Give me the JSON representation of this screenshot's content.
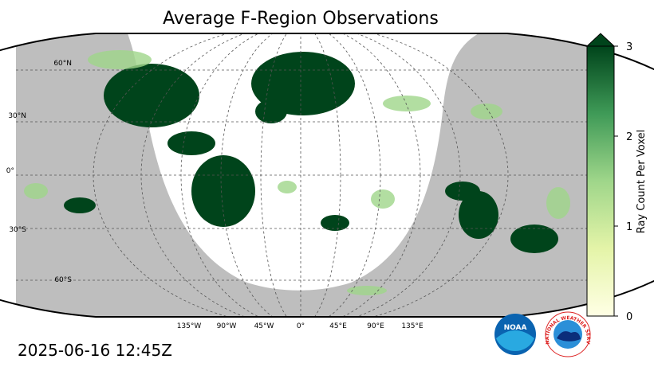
{
  "title": "Average F-Region Observations",
  "map": {
    "lat_labels": [
      "60°N",
      "30°N",
      "0°",
      "30°S",
      "60°S"
    ],
    "lon_labels": [
      "135°W",
      "90°W",
      "45°W",
      "0°",
      "45°E",
      "90°E",
      "135°E"
    ]
  },
  "colorbar": {
    "label": "Ray Count Per Voxel",
    "lim": [
      0,
      3
    ],
    "ticks": [
      0,
      1,
      2,
      3
    ]
  },
  "timestamp": "2025-06-16 12:45Z",
  "logos": {
    "noaa": "NOAA",
    "nws": "NATIONAL WEATHER SERVICE"
  }
}
